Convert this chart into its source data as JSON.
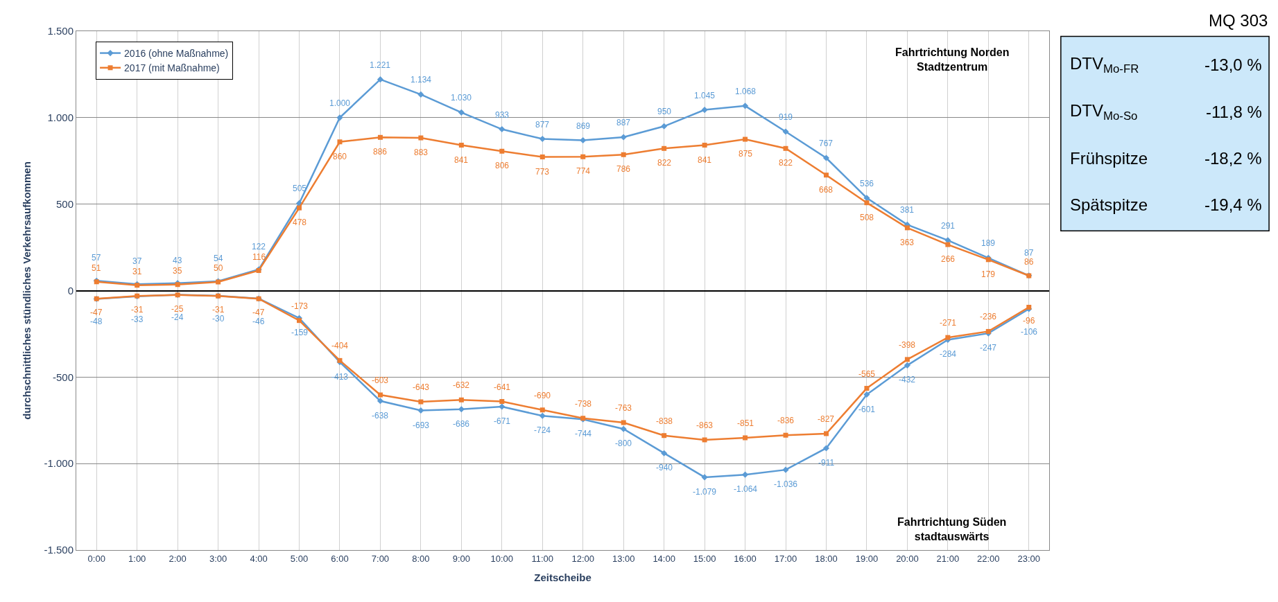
{
  "chart_data": {
    "type": "line",
    "xlabel": "Zeitscheibe",
    "ylabel": "durchschnittliches stündliches Verkehrsaufkommen",
    "categories": [
      "0:00",
      "1:00",
      "2:00",
      "3:00",
      "4:00",
      "5:00",
      "6:00",
      "7:00",
      "8:00",
      "9:00",
      "10:00",
      "11:00",
      "12:00",
      "13:00",
      "14:00",
      "15:00",
      "16:00",
      "17:00",
      "18:00",
      "19:00",
      "20:00",
      "21:00",
      "22:00",
      "23:00"
    ],
    "series": [
      {
        "name": "2016 (ohne Maßnahme)",
        "color": "#5b9bd5",
        "marker": "diamond",
        "values": [
          57,
          37,
          43,
          54,
          122,
          505,
          1000,
          1221,
          1134,
          1030,
          933,
          877,
          869,
          887,
          950,
          1045,
          1068,
          919,
          767,
          536,
          381,
          291,
          189,
          87
        ],
        "value_labels": [
          "57",
          "37",
          "43",
          "54",
          "122",
          "505",
          "1.000",
          "1.221",
          "1.134",
          "1.030",
          "933",
          "877",
          "869",
          "887",
          "950",
          "1.045",
          "1.068",
          "919",
          "767",
          "536",
          "381",
          "291",
          "189",
          "87"
        ]
      },
      {
        "name": "2017 (mit Maßnahme)",
        "color": "#ed7d31",
        "marker": "square",
        "values": [
          51,
          31,
          35,
          50,
          116,
          478,
          860,
          886,
          883,
          841,
          806,
          773,
          774,
          786,
          822,
          841,
          875,
          822,
          668,
          508,
          363,
          266,
          179,
          86
        ],
        "value_labels": [
          "51",
          "31",
          "35",
          "50",
          "116",
          "478",
          "860",
          "886",
          "883",
          "841",
          "806",
          "773",
          "774",
          "786",
          "822",
          "841",
          "875",
          "822",
          "668",
          "508",
          "363",
          "266",
          "179",
          "86"
        ]
      },
      {
        "color": "#5b9bd5",
        "marker": "diamond",
        "values": [
          -48,
          -33,
          -24,
          -30,
          -46,
          -159,
          -413,
          -638,
          -693,
          -686,
          -671,
          -724,
          -744,
          -800,
          -940,
          -1079,
          -1064,
          -1036,
          -911,
          -601,
          -432,
          -284,
          -247,
          -106
        ],
        "value_labels": [
          "-48",
          "-33",
          "-24",
          "-30",
          "-46",
          "-159",
          "-413",
          "-638",
          "-693",
          "-686",
          "-671",
          "-724",
          "-744",
          "-800",
          "-940",
          "-1.079",
          "-1.064",
          "-1.036",
          "-911",
          "-601",
          "-432",
          "-284",
          "-247",
          "-106"
        ]
      },
      {
        "color": "#ed7d31",
        "marker": "square",
        "values": [
          -47,
          -31,
          -25,
          -31,
          -47,
          -173,
          -404,
          -603,
          -643,
          -632,
          -641,
          -690,
          -738,
          -763,
          -838,
          -863,
          -851,
          -836,
          -827,
          -565,
          -398,
          -271,
          -236,
          -96
        ],
        "value_labels": [
          "-47",
          "-31",
          "-25",
          "-31",
          "-47",
          "-173",
          "-404",
          "-603",
          "-643",
          "-632",
          "-641",
          "-690",
          "-738",
          "-763",
          "-838",
          "-863",
          "-851",
          "-836",
          "-827",
          "-565",
          "-398",
          "-271",
          "-236",
          "-96"
        ]
      }
    ],
    "ylim": [
      -1500,
      1500
    ],
    "yticks": [
      {
        "value": -1500,
        "label": "-1.500"
      },
      {
        "value": -1000,
        "label": "-1.000"
      },
      -500,
      0,
      500,
      {
        "value": 1000,
        "label": "1.000"
      },
      {
        "value": 1500,
        "label": "1.500"
      }
    ],
    "grid": true,
    "legend": "top left",
    "annotations": [
      "Fahrtrichtung Norden\nStadtzentrum",
      "Fahrtrichtung Süden\nstadtauswärts",
      "MQ 303",
      "DTV$_{Mo-FR}$",
      "-13,0 %",
      "DTV$_{Mo-So}$",
      "-11,8 %",
      "Frühspitze",
      "-18,2 %",
      "Spätspitze",
      "-19,4 %"
    ]
  }
}
